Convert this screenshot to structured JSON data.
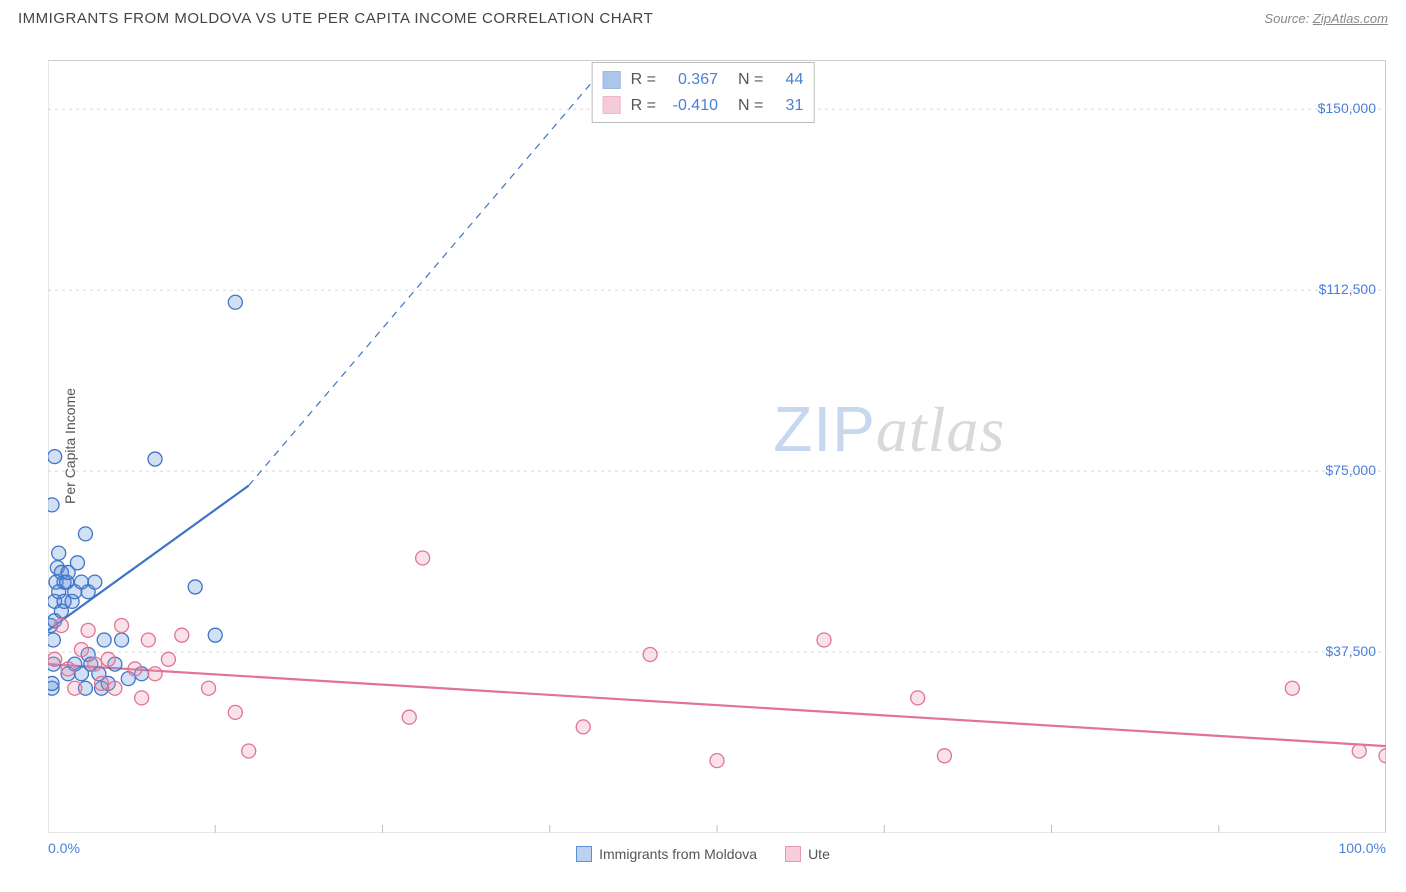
{
  "header": {
    "title": "IMMIGRANTS FROM MOLDOVA VS UTE PER CAPITA INCOME CORRELATION CHART",
    "source_label": "Source:",
    "source_name": "ZipAtlas.com"
  },
  "ylabel": "Per Capita Income",
  "watermark": {
    "part1": "ZIP",
    "part2": "atlas"
  },
  "chart": {
    "type": "scatter",
    "background_color": "#ffffff",
    "grid_color": "#d8d8d8",
    "axis_color": "#cccccc",
    "tick_color": "#bfbfbf",
    "xlim": [
      0,
      100
    ],
    "ylim": [
      0,
      160000
    ],
    "y_gridlines": [
      37500,
      75000,
      112500,
      150000
    ],
    "y_tick_labels": [
      "$37,500",
      "$75,000",
      "$112,500",
      "$150,000"
    ],
    "x_ticks": [
      0,
      12.5,
      25,
      37.5,
      50,
      62.5,
      75,
      87.5,
      100
    ],
    "x_tick_labels": {
      "0": "0.0%",
      "100": "100.0%"
    },
    "marker_radius": 7,
    "marker_stroke_width": 1.3,
    "marker_fill_opacity": 0.28,
    "series": [
      {
        "name": "Immigrants from Moldova",
        "key": "moldova",
        "color": "#5b8fd6",
        "stroke": "#3f74c6",
        "r_value": "0.367",
        "n_value": "44",
        "regression": {
          "x1": 0,
          "y1": 42000,
          "x2": 15,
          "y2": 72000,
          "width": 2.2,
          "dashed_extension": {
            "x2": 42,
            "y2": 160000
          }
        },
        "points": [
          [
            0.2,
            43000
          ],
          [
            0.3,
            30000
          ],
          [
            0.4,
            35000
          ],
          [
            0.3,
            31000
          ],
          [
            0.5,
            48000
          ],
          [
            0.6,
            52000
          ],
          [
            0.7,
            55000
          ],
          [
            0.4,
            40000
          ],
          [
            0.5,
            44000
          ],
          [
            0.8,
            58000
          ],
          [
            0.8,
            50000
          ],
          [
            1.0,
            54000
          ],
          [
            1.0,
            46000
          ],
          [
            1.2,
            48000
          ],
          [
            1.2,
            52000
          ],
          [
            1.4,
            52000
          ],
          [
            1.5,
            54000
          ],
          [
            1.5,
            33000
          ],
          [
            1.8,
            48000
          ],
          [
            2.0,
            50000
          ],
          [
            2.0,
            35000
          ],
          [
            2.2,
            56000
          ],
          [
            2.5,
            52000
          ],
          [
            2.5,
            33000
          ],
          [
            2.8,
            62000
          ],
          [
            2.8,
            30000
          ],
          [
            3.0,
            50000
          ],
          [
            3.0,
            37000
          ],
          [
            3.2,
            35000
          ],
          [
            3.5,
            52000
          ],
          [
            3.8,
            33000
          ],
          [
            4.0,
            30000
          ],
          [
            4.2,
            40000
          ],
          [
            4.5,
            31000
          ],
          [
            5.0,
            35000
          ],
          [
            5.5,
            40000
          ],
          [
            6.0,
            32000
          ],
          [
            7.0,
            33000
          ],
          [
            8.0,
            77500
          ],
          [
            11.0,
            51000
          ],
          [
            12.5,
            41000
          ],
          [
            0.3,
            68000
          ],
          [
            0.5,
            78000
          ],
          [
            14.0,
            110000
          ]
        ]
      },
      {
        "name": "Ute",
        "key": "ute",
        "color": "#e99ab0",
        "stroke": "#e27396",
        "r_value": "-0.410",
        "n_value": "31",
        "regression": {
          "x1": 0,
          "y1": 35000,
          "x2": 100,
          "y2": 18000,
          "width": 2.2
        },
        "points": [
          [
            0.5,
            36000
          ],
          [
            1.0,
            43000
          ],
          [
            1.5,
            34000
          ],
          [
            2.0,
            30000
          ],
          [
            2.5,
            38000
          ],
          [
            3.0,
            42000
          ],
          [
            3.5,
            35000
          ],
          [
            4.0,
            31000
          ],
          [
            4.5,
            36000
          ],
          [
            5.0,
            30000
          ],
          [
            5.5,
            43000
          ],
          [
            6.5,
            34000
          ],
          [
            7.0,
            28000
          ],
          [
            7.5,
            40000
          ],
          [
            8.0,
            33000
          ],
          [
            9.0,
            36000
          ],
          [
            10.0,
            41000
          ],
          [
            12.0,
            30000
          ],
          [
            14.0,
            25000
          ],
          [
            15.0,
            17000
          ],
          [
            27.0,
            24000
          ],
          [
            28.0,
            57000
          ],
          [
            40.0,
            22000
          ],
          [
            45.0,
            37000
          ],
          [
            50.0,
            15000
          ],
          [
            58.0,
            40000
          ],
          [
            65.0,
            28000
          ],
          [
            67.0,
            16000
          ],
          [
            93.0,
            30000
          ],
          [
            98.0,
            17000
          ],
          [
            100.0,
            16000
          ]
        ]
      }
    ]
  },
  "legend_bottom": [
    {
      "label": "Immigrants from Moldova",
      "fill": "#bcd2ee",
      "stroke": "#5b8fd6"
    },
    {
      "label": "Ute",
      "fill": "#f6cdd8",
      "stroke": "#e99ab0"
    }
  ],
  "corr_box": {
    "label_r": "R =",
    "label_n": "N =",
    "value_color": "#4a7fd8"
  }
}
